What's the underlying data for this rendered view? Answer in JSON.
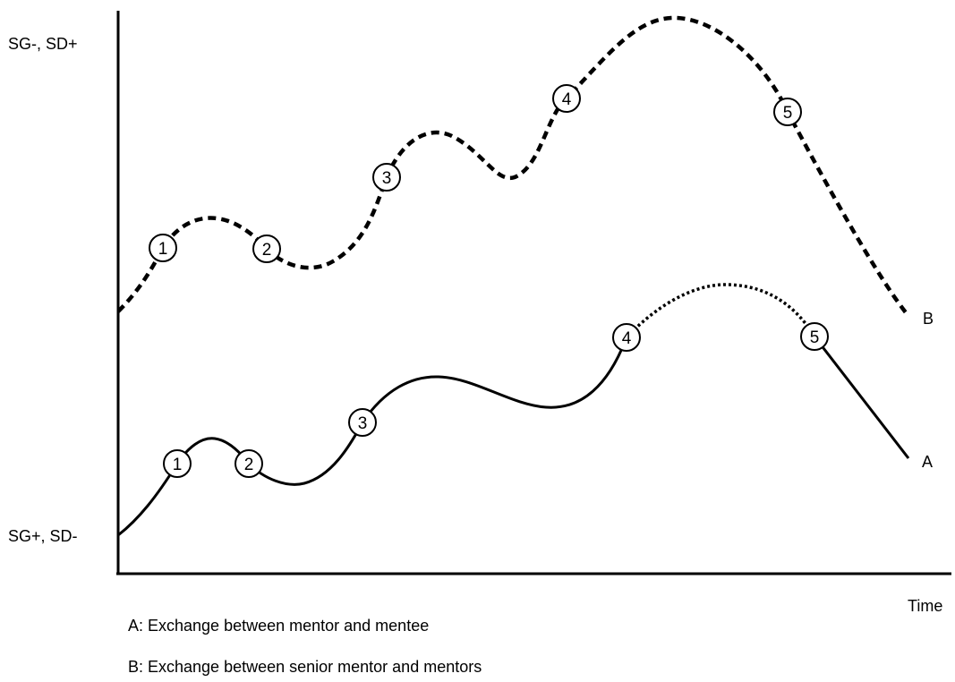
{
  "axes": {
    "y_top_label": "SG-, SD+",
    "y_bottom_label": "SG+, SD-",
    "x_label": "Time"
  },
  "curves": [
    {
      "id": "A",
      "label": "A",
      "style": "solid",
      "dotted_segment": [
        "4",
        "5"
      ],
      "markers": [
        "1",
        "2",
        "3",
        "4",
        "5"
      ]
    },
    {
      "id": "B",
      "label": "B",
      "style": "dashed",
      "markers": [
        "1",
        "2",
        "3",
        "4",
        "5"
      ]
    }
  ],
  "legend": [
    "A: Exchange between mentor and mentee",
    "B: Exchange between senior mentor and mentors"
  ]
}
